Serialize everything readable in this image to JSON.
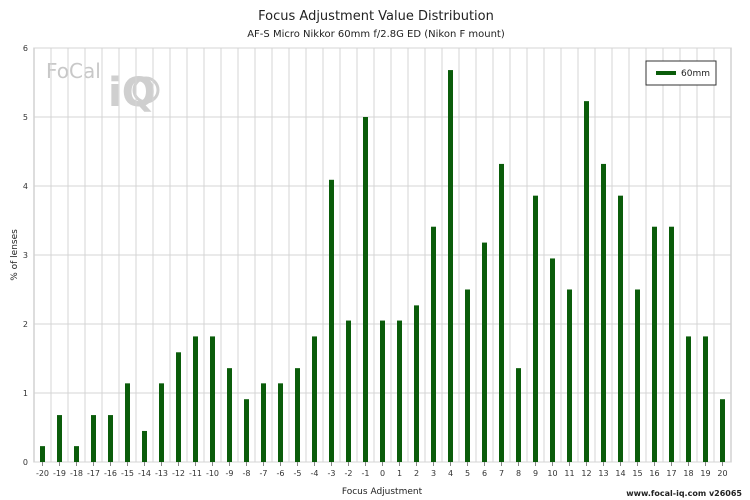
{
  "chart_data": {
    "type": "bar",
    "title": "Focus Adjustment Value Distribution",
    "subtitle": "AF-S Micro Nikkor 60mm f/2.8G ED (Nikon F mount)",
    "xlabel": "Focus Adjustment",
    "ylabel": "% of lenses",
    "ylim": [
      0,
      6
    ],
    "yticks": [
      0,
      1,
      2,
      3,
      4,
      5,
      6
    ],
    "grid": true,
    "legend_position": "top-right",
    "categories": [
      "-20",
      "-19",
      "-18",
      "-17",
      "-16",
      "-15",
      "-14",
      "-13",
      "-12",
      "-11",
      "-10",
      "-9",
      "-8",
      "-7",
      "-6",
      "-5",
      "-4",
      "-3",
      "-2",
      "-1",
      "0",
      "1",
      "2",
      "3",
      "4",
      "5",
      "6",
      "7",
      "8",
      "9",
      "10",
      "11",
      "12",
      "13",
      "14",
      "15",
      "16",
      "17",
      "18",
      "19",
      "20"
    ],
    "series": [
      {
        "name": "60mm",
        "color": "#0a5c0a",
        "values": [
          0.23,
          0.68,
          0.23,
          0.68,
          0.68,
          1.14,
          0.45,
          1.14,
          1.59,
          1.82,
          1.82,
          1.36,
          0.91,
          1.14,
          1.14,
          1.36,
          1.82,
          4.09,
          2.05,
          5.0,
          2.05,
          2.05,
          2.27,
          3.41,
          5.68,
          2.5,
          3.18,
          4.32,
          1.36,
          3.86,
          2.95,
          2.5,
          5.23,
          4.32,
          3.86,
          2.5,
          3.41,
          3.41,
          1.82,
          1.82,
          0.91
        ]
      }
    ]
  },
  "watermark": {
    "text": "FoCal",
    "mark": "iQ"
  },
  "footer": "www.focal-iq.com  v26065"
}
